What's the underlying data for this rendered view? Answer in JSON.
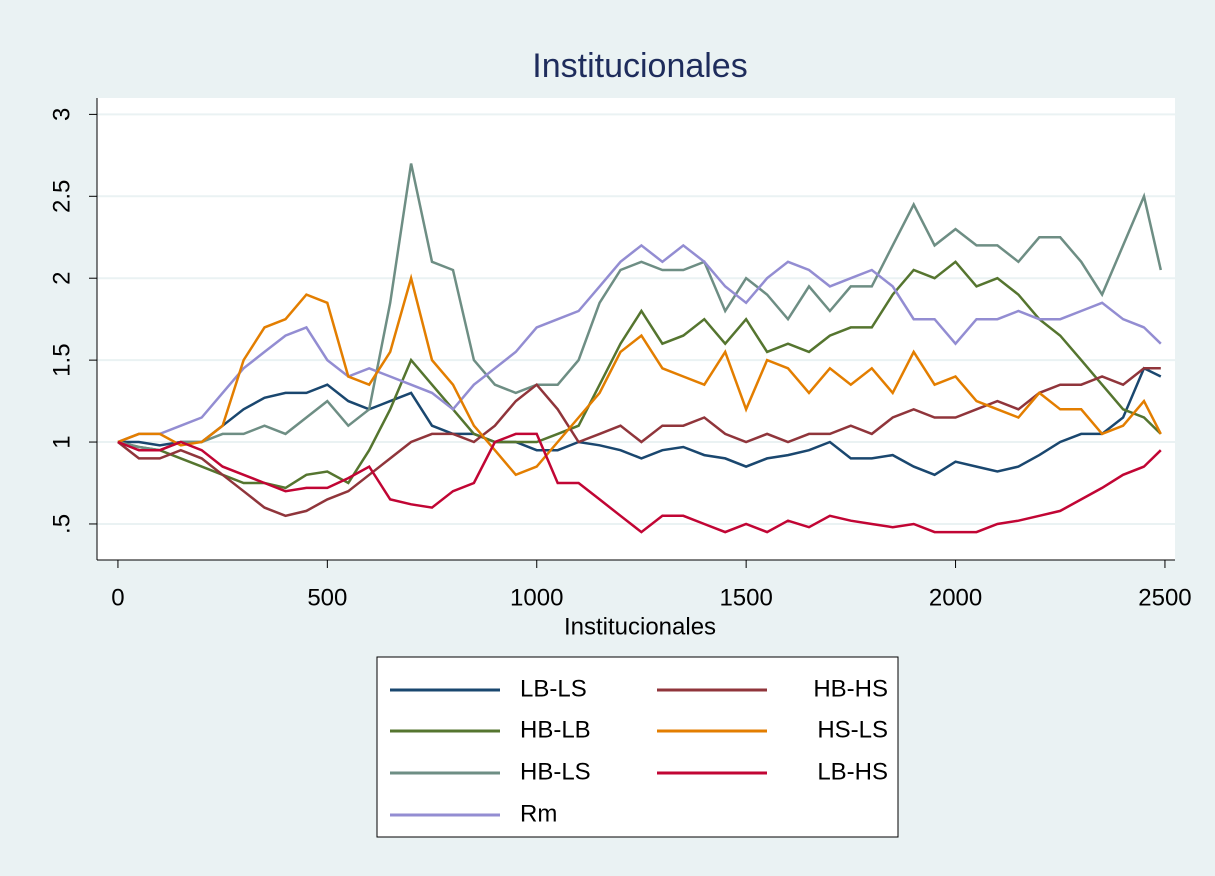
{
  "chart_data": {
    "type": "line",
    "title": "Institucionales",
    "x_label": "Institucionales",
    "x": [
      0,
      50,
      100,
      150,
      200,
      250,
      300,
      350,
      400,
      450,
      500,
      550,
      600,
      650,
      700,
      750,
      800,
      850,
      900,
      950,
      1000,
      1050,
      1100,
      1150,
      1200,
      1250,
      1300,
      1350,
      1400,
      1450,
      1500,
      1550,
      1600,
      1650,
      1700,
      1750,
      1800,
      1850,
      1900,
      1950,
      2000,
      2050,
      2100,
      2150,
      2200,
      2250,
      2300,
      2350,
      2400,
      2450,
      2490
    ],
    "xlim": [
      -50,
      2524
    ],
    "xticks": [
      0,
      500,
      1000,
      1500,
      2000,
      2500
    ],
    "ylim": [
      0.28,
      3.1
    ],
    "yticks": [
      {
        "value": 0.5,
        "label": ".5"
      },
      1,
      1.5,
      2,
      2.5,
      3
    ],
    "grid": true,
    "legend": "bottom",
    "series": [
      {
        "name": "LB-LS",
        "color": "#1a476f",
        "values": [
          1.0,
          1.0,
          0.98,
          1.0,
          1.0,
          1.1,
          1.2,
          1.27,
          1.3,
          1.3,
          1.35,
          1.25,
          1.2,
          1.25,
          1.3,
          1.1,
          1.05,
          1.05,
          1.0,
          1.0,
          0.95,
          0.95,
          1.0,
          0.98,
          0.95,
          0.9,
          0.95,
          0.97,
          0.92,
          0.9,
          0.85,
          0.9,
          0.92,
          0.95,
          1.0,
          0.9,
          0.9,
          0.92,
          0.85,
          0.8,
          0.88,
          0.85,
          0.82,
          0.85,
          0.92,
          1.0,
          1.05,
          1.05,
          1.15,
          1.45,
          1.4
        ]
      },
      {
        "name": "HB-LB",
        "color": "#55752f",
        "values": [
          1.0,
          0.97,
          0.95,
          0.9,
          0.85,
          0.8,
          0.75,
          0.75,
          0.72,
          0.8,
          0.82,
          0.75,
          0.95,
          1.2,
          1.5,
          1.35,
          1.2,
          1.05,
          1.0,
          1.0,
          1.0,
          1.05,
          1.1,
          1.35,
          1.6,
          1.8,
          1.6,
          1.65,
          1.75,
          1.6,
          1.75,
          1.55,
          1.6,
          1.55,
          1.65,
          1.7,
          1.7,
          1.9,
          2.05,
          2.0,
          2.1,
          1.95,
          2.0,
          1.9,
          1.75,
          1.65,
          1.5,
          1.35,
          1.2,
          1.15,
          1.05
        ]
      },
      {
        "name": "HB-LS",
        "color": "#6e8e84",
        "values": [
          1.0,
          0.97,
          0.95,
          1.0,
          1.0,
          1.05,
          1.05,
          1.1,
          1.05,
          1.15,
          1.25,
          1.1,
          1.2,
          1.85,
          2.7,
          2.1,
          2.05,
          1.5,
          1.35,
          1.3,
          1.35,
          1.35,
          1.5,
          1.85,
          2.05,
          2.1,
          2.05,
          2.05,
          2.1,
          1.8,
          2.0,
          1.9,
          1.75,
          1.95,
          1.8,
          1.95,
          1.95,
          2.2,
          2.45,
          2.2,
          2.3,
          2.2,
          2.2,
          2.1,
          2.25,
          2.25,
          2.1,
          1.9,
          2.2,
          2.5,
          2.05
        ]
      },
      {
        "name": "Rm",
        "color": "#938dd2",
        "values": [
          1.0,
          1.05,
          1.05,
          1.1,
          1.15,
          1.3,
          1.45,
          1.55,
          1.65,
          1.7,
          1.5,
          1.4,
          1.45,
          1.4,
          1.35,
          1.3,
          1.2,
          1.35,
          1.45,
          1.55,
          1.7,
          1.75,
          1.8,
          1.95,
          2.1,
          2.2,
          2.1,
          2.2,
          2.1,
          1.95,
          1.85,
          2.0,
          2.1,
          2.05,
          1.95,
          2.0,
          2.05,
          1.95,
          1.75,
          1.75,
          1.6,
          1.75,
          1.75,
          1.8,
          1.75,
          1.75,
          1.8,
          1.85,
          1.75,
          1.7,
          1.6
        ]
      },
      {
        "name": "HB-HS",
        "color": "#90353b",
        "values": [
          1.0,
          0.9,
          0.9,
          0.95,
          0.9,
          0.8,
          0.7,
          0.6,
          0.55,
          0.58,
          0.65,
          0.7,
          0.8,
          0.9,
          1.0,
          1.05,
          1.05,
          1.0,
          1.1,
          1.25,
          1.35,
          1.2,
          1.0,
          1.05,
          1.1,
          1.0,
          1.1,
          1.1,
          1.15,
          1.05,
          1.0,
          1.05,
          1.0,
          1.05,
          1.05,
          1.1,
          1.05,
          1.15,
          1.2,
          1.15,
          1.15,
          1.2,
          1.25,
          1.2,
          1.3,
          1.35,
          1.35,
          1.4,
          1.35,
          1.45,
          1.45
        ]
      },
      {
        "name": "HS-LS",
        "color": "#e37e00",
        "values": [
          1.0,
          1.05,
          1.05,
          0.98,
          1.0,
          1.1,
          1.5,
          1.7,
          1.75,
          1.9,
          1.85,
          1.4,
          1.35,
          1.55,
          2.0,
          1.5,
          1.35,
          1.1,
          0.95,
          0.8,
          0.85,
          1.0,
          1.15,
          1.3,
          1.55,
          1.65,
          1.45,
          1.4,
          1.35,
          1.55,
          1.2,
          1.5,
          1.45,
          1.3,
          1.45,
          1.35,
          1.45,
          1.3,
          1.55,
          1.35,
          1.4,
          1.25,
          1.2,
          1.15,
          1.3,
          1.2,
          1.2,
          1.05,
          1.1,
          1.25,
          1.05
        ]
      },
      {
        "name": "LB-HS",
        "color": "#c10534",
        "values": [
          1.0,
          0.95,
          0.95,
          1.0,
          0.95,
          0.85,
          0.8,
          0.75,
          0.7,
          0.72,
          0.72,
          0.78,
          0.85,
          0.65,
          0.62,
          0.6,
          0.7,
          0.75,
          1.0,
          1.05,
          1.05,
          0.75,
          0.75,
          0.65,
          0.55,
          0.45,
          0.55,
          0.55,
          0.5,
          0.45,
          0.5,
          0.45,
          0.52,
          0.48,
          0.55,
          0.52,
          0.5,
          0.48,
          0.5,
          0.45,
          0.45,
          0.45,
          0.5,
          0.52,
          0.55,
          0.58,
          0.65,
          0.72,
          0.8,
          0.85,
          0.95
        ]
      }
    ]
  }
}
